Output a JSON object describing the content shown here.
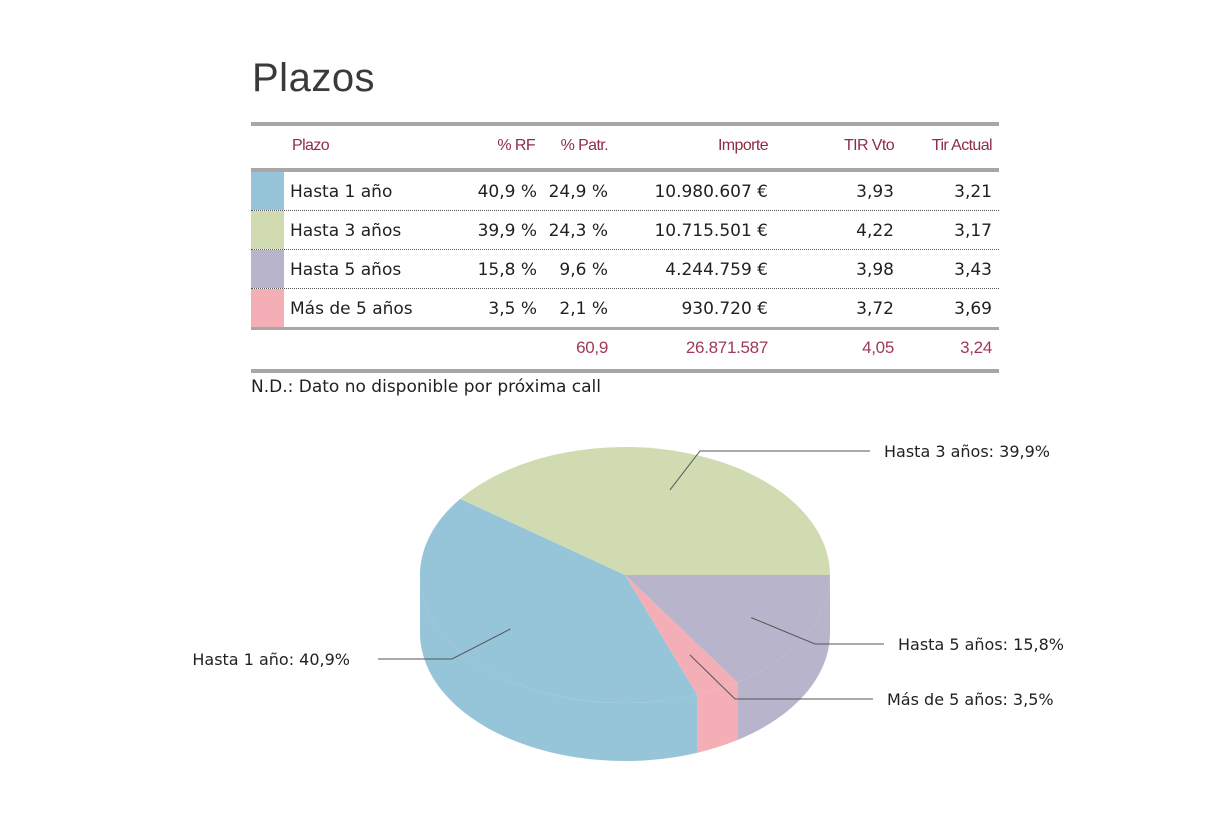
{
  "title": "Plazos",
  "table": {
    "headers": {
      "plazo": "Plazo",
      "rf": "% RF",
      "patr": "% Patr.",
      "importe": "Importe",
      "tir_vto": "TIR Vto",
      "tir_actual": "Tir Actual"
    },
    "rows": [
      {
        "plazo": "Hasta 1 año",
        "rf": "40,9 %",
        "patr": "24,9 %",
        "importe": "10.980.607 €",
        "tir_vto": "3,93",
        "tir_actual": "3,21",
        "color": "#96c4d9"
      },
      {
        "plazo": "Hasta 3 años",
        "rf": "39,9 %",
        "patr": "24,3 %",
        "importe": "10.715.501 €",
        "tir_vto": "4,22",
        "tir_actual": "3,17",
        "color": "#d1dbb2"
      },
      {
        "plazo": "Hasta 5 años",
        "rf": "15,8 %",
        "patr": "9,6 %",
        "importe": "4.244.759 €",
        "tir_vto": "3,98",
        "tir_actual": "3,43",
        "color": "#b8b4cb"
      },
      {
        "plazo": "Más de 5 años",
        "rf": "3,5 %",
        "patr": "2,1 %",
        "importe": "930.720 €",
        "tir_vto": "3,72",
        "tir_actual": "3,69",
        "color": "#f4afb6"
      }
    ],
    "totals": {
      "patr": "60,9",
      "importe": "26.871.587",
      "tir_vto": "4,05",
      "tir_actual": "3,24"
    }
  },
  "note": "N.D.: Dato no disponible por próxima call",
  "chart_data": {
    "type": "pie",
    "title": "",
    "slices": [
      {
        "label": "Hasta 1 año",
        "value": 40.9,
        "display": "Hasta 1 año: 40,9%",
        "color": "#96c4d9"
      },
      {
        "label": "Hasta 3 años",
        "value": 39.9,
        "display": "Hasta 3 años: 39,9%",
        "color": "#d1dbb2"
      },
      {
        "label": "Hasta 5 años",
        "value": 15.8,
        "display": "Hasta 5 años: 15,8%",
        "color": "#b8b4cb"
      },
      {
        "label": "Más de 5 años",
        "value": 3.5,
        "display": "Más de 5 años: 3,5%",
        "color": "#f4afb6"
      }
    ],
    "style": "3d",
    "legend": "none"
  }
}
